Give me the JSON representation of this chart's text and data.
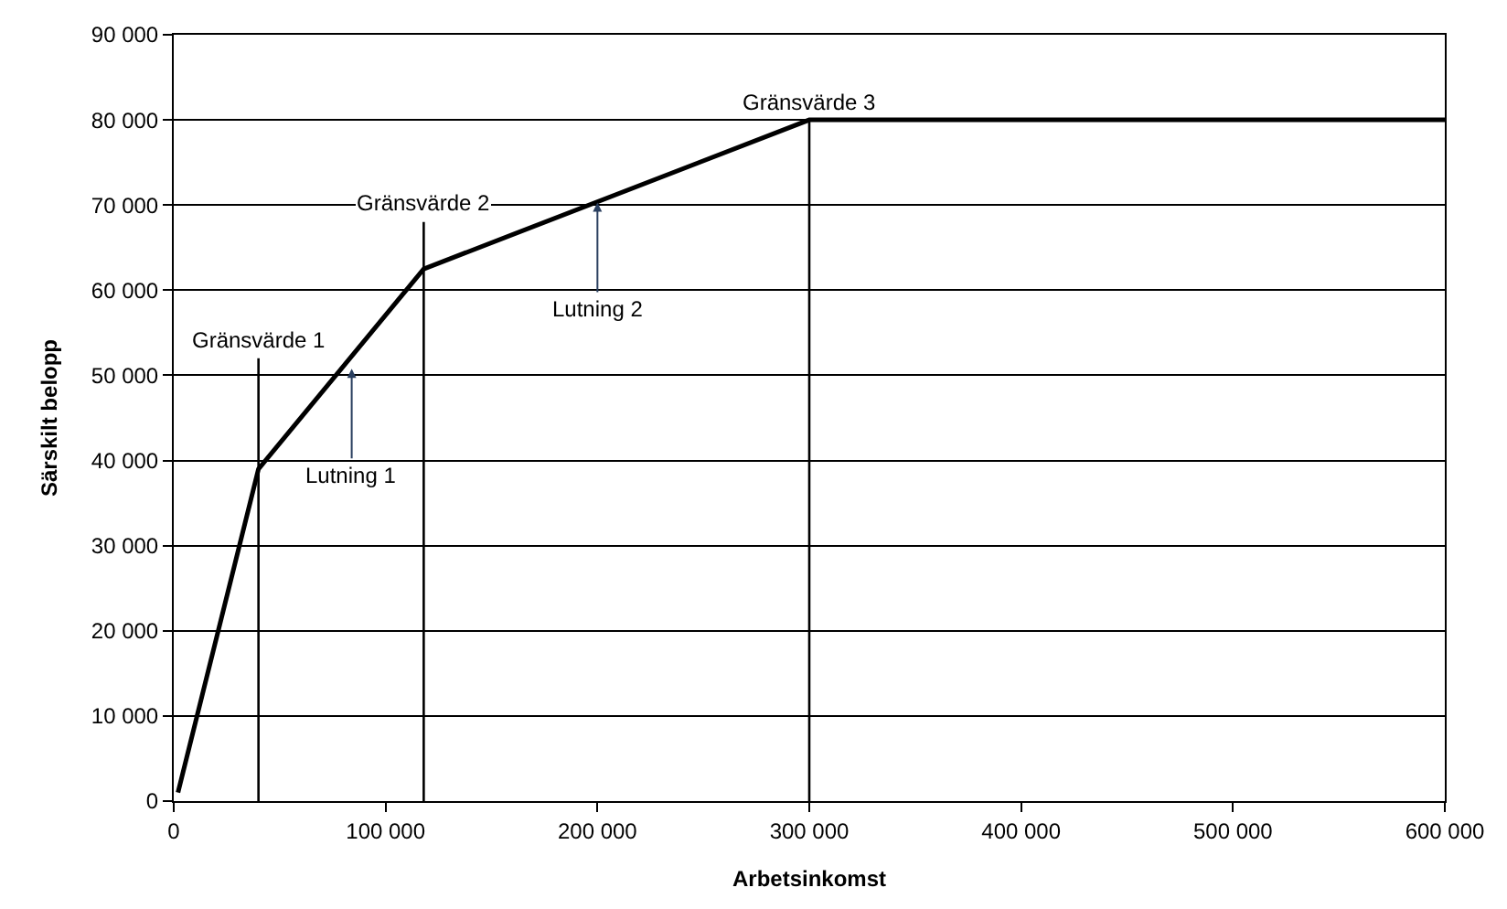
{
  "chart_data": {
    "type": "line",
    "xlabel": "Arbetsinkomst",
    "ylabel": "Särskilt belopp",
    "series": [
      {
        "color": "#000000",
        "x": [
          2000,
          40000,
          118000,
          300000,
          600000
        ],
        "values": [
          1000,
          39000,
          62500,
          80000,
          80000
        ]
      },
      {
        "name": "Gränsvärde 1",
        "color": "#000000",
        "x": [
          40000,
          40000
        ],
        "values": [
          0,
          52000
        ]
      },
      {
        "name": "Gränsvärde 2",
        "color": "#000000",
        "x": [
          118000,
          118000
        ],
        "values": [
          0,
          68000
        ]
      },
      {
        "name": "Gränsvärde 3",
        "color": "#000000",
        "x": [
          300000,
          300000
        ],
        "values": [
          0,
          80000
        ]
      }
    ],
    "annotations": [
      {
        "text": "Lutning 1",
        "x": 84000,
        "y": 51000
      },
      {
        "text": "Lutning 2",
        "x": 200000,
        "y": 70500
      }
    ],
    "xlim": [
      0,
      600000
    ],
    "ylim": [
      0,
      90000
    ],
    "xticks": [
      0,
      {
        "value": 100000,
        "label": "100 000"
      },
      {
        "value": 200000,
        "label": "200 000"
      },
      {
        "value": 300000,
        "label": "300 000"
      },
      {
        "value": 400000,
        "label": "400 000"
      },
      {
        "value": 500000,
        "label": "500 000"
      },
      {
        "value": 600000,
        "label": "600 000"
      }
    ],
    "yticks": [
      0,
      {
        "value": 10000,
        "label": "10 000"
      },
      {
        "value": 20000,
        "label": "20 000"
      },
      {
        "value": 30000,
        "label": "30 000"
      },
      {
        "value": 40000,
        "label": "40 000"
      },
      {
        "value": 50000,
        "label": "50 000"
      },
      {
        "value": 60000,
        "label": "60 000"
      },
      {
        "value": 70000,
        "label": "70 000"
      },
      {
        "value": 80000,
        "label": "80 000"
      },
      {
        "value": 90000,
        "label": "90 000"
      }
    ],
    "grid": "y",
    "legend": false,
    "marker": "none",
    "line_style": "solid"
  }
}
